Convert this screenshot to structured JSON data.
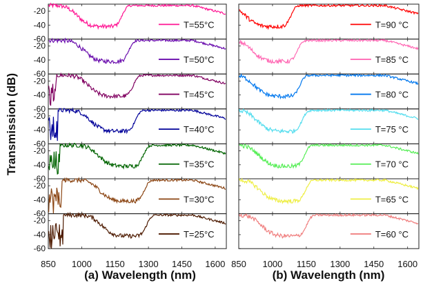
{
  "figure": {
    "ylabel": "Transmission (dB)"
  },
  "chart_data": [
    {
      "panel": "a",
      "type": "line",
      "xlabel": "(a) Wavelength (nm)",
      "ylabel": "Transmission (dB)",
      "xlim": [
        850,
        1650
      ],
      "xticks": [
        850,
        1000,
        1150,
        1300,
        1450,
        1600
      ],
      "ylim": [
        -60,
        -10
      ],
      "yticks": [
        -20,
        -40,
        -60
      ],
      "legend_placement": "right of each subplot",
      "series": [
        {
          "name": "T=55°C",
          "color": "#ff1493",
          "minWavelength": 1120,
          "leftEdge": -60
        },
        {
          "name": "T=50°C",
          "color": "#6a0dad",
          "minWavelength": 1150,
          "leftEdge": -60
        },
        {
          "name": "T=45°C",
          "color": "#800060",
          "minWavelength": 1170,
          "leftEdge": -60
        },
        {
          "name": "T=40°C",
          "color": "#000099",
          "minWavelength": 1180,
          "leftEdge": -60
        },
        {
          "name": "T=35°C",
          "color": "#006400",
          "minWavelength": 1215,
          "leftEdge": -60
        },
        {
          "name": "T=30°C",
          "color": "#8b4513",
          "minWavelength": 1220,
          "leftEdge": -60
        },
        {
          "name": "T=25°C",
          "color": "#4d1a00",
          "minWavelength": 1230,
          "leftEdge": -60
        }
      ]
    },
    {
      "panel": "b",
      "type": "line",
      "xlabel": "(b) Wavelength (nm)",
      "xlim": [
        850,
        1650
      ],
      "xticks": [
        850,
        1000,
        1150,
        1300,
        1450,
        1600
      ],
      "ylim": [
        -60,
        -10
      ],
      "legend_placement": "right of each subplot",
      "series": [
        {
          "name": "T=90 °C",
          "color": "#ff0000",
          "minWavelength": 1020
        },
        {
          "name": "T=85 °C",
          "color": "#ff69b4",
          "minWavelength": 1050
        },
        {
          "name": "T=80 °C",
          "color": "#0077ee",
          "minWavelength": 1060
        },
        {
          "name": "T=75 °C",
          "color": "#55ddee",
          "minWavelength": 1070
        },
        {
          "name": "T=70 °C",
          "color": "#55ee55",
          "minWavelength": 1080
        },
        {
          "name": "T=65 °C",
          "color": "#eeee44",
          "minWavelength": 1085
        },
        {
          "name": "T=60 °C",
          "color": "#f08080",
          "minWavelength": 1090
        }
      ]
    }
  ]
}
